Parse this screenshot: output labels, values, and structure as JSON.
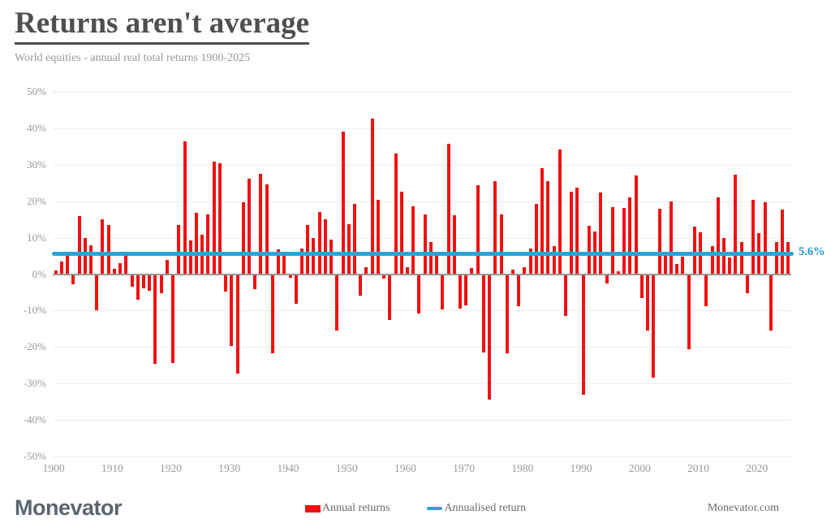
{
  "header": {
    "title": "Returns aren't average",
    "subtitle": "World equities - annual real total returns 1900-2025"
  },
  "chart_data": {
    "type": "bar",
    "title": "Returns aren't average",
    "subtitle": "World equities - annual real total returns 1900-2025",
    "start_year": 1900,
    "end_year": 2025,
    "unit": "%",
    "ylim": [
      -50,
      50
    ],
    "y_ticks": [
      50,
      40,
      30,
      20,
      10,
      0,
      -10,
      -20,
      -30,
      -40,
      -50
    ],
    "y_tick_labels": [
      "50%",
      "40%",
      "30%",
      "20%",
      "10%",
      "0%",
      "-10%",
      "-20%",
      "-30%",
      "-40%",
      "-50%"
    ],
    "x_ticks": [
      1900,
      1910,
      1920,
      1930,
      1940,
      1950,
      1960,
      1970,
      1980,
      1990,
      2000,
      2010,
      2020
    ],
    "grid": true,
    "legend_position": "bottom",
    "annualised_return": 5.6,
    "annualised_label": "5.6%",
    "series": [
      {
        "name": "Annual returns",
        "values": [
          1.0,
          3.5,
          5.0,
          -2.7,
          16.0,
          10.0,
          8.0,
          -10.0,
          15.0,
          13.5,
          1.5,
          3.0,
          5.0,
          -3.5,
          -7.0,
          -4.0,
          -4.5,
          -24.5,
          -5.2,
          3.9,
          -24.3,
          13.4,
          36.4,
          9.2,
          16.9,
          10.8,
          16.4,
          30.8,
          30.3,
          -4.7,
          -19.6,
          -27.3,
          19.6,
          26.2,
          -4.1,
          27.4,
          24.7,
          -21.8,
          6.8,
          5.0,
          -1.1,
          -8.1,
          7.1,
          13.4,
          10.0,
          17.0,
          15.0,
          9.4,
          -15.5,
          39.0,
          13.8,
          19.3,
          -6.0,
          1.8,
          42.6,
          20.4,
          -1.3,
          -12.5,
          33.0,
          22.5,
          1.9,
          18.6,
          -10.9,
          16.4,
          8.7,
          5.0,
          -9.7,
          35.7,
          16.1,
          -9.4,
          -8.6,
          1.6,
          24.3,
          -21.4,
          -34.3,
          25.4,
          16.4,
          -21.8,
          1.3,
          -8.9,
          1.8,
          7.0,
          19.3,
          29.1,
          25.4,
          7.7,
          34.2,
          -11.4,
          22.7,
          23.8,
          -33.0,
          13.3,
          11.8,
          22.3,
          -2.5,
          18.4,
          0.8,
          18.1,
          21.0,
          27.0,
          -6.5,
          -15.5,
          -28.3,
          18.0,
          5.0,
          19.9,
          2.8,
          4.7,
          -20.5,
          13.1,
          11.5,
          -8.8,
          7.6,
          21.0,
          9.8,
          4.6,
          27.3,
          8.7,
          -5.3,
          20.4,
          11.2,
          19.6,
          -15.5,
          8.7,
          17.6,
          8.9
        ]
      },
      {
        "name": "Annualised return",
        "value": 5.6
      }
    ]
  },
  "legend": {
    "annual_label": "Annual returns",
    "annualised_label": "Annualised return"
  },
  "colors": {
    "bar_red": "#f01111",
    "line_blue": "#29a3d9",
    "annotation_blue": "#1e96d2",
    "grid": "#ededed",
    "zero_line": "#979797",
    "text_gray": "#9a9a9a"
  },
  "footer": {
    "logo": "Monevator",
    "site": "Monevator.com"
  }
}
